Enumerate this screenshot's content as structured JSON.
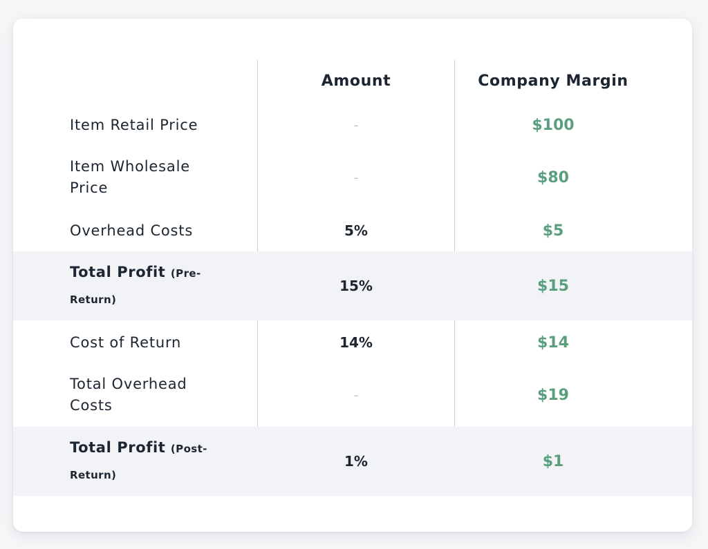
{
  "table": {
    "headers": {
      "label": "",
      "amount": "Amount",
      "margin": "Company Margin"
    },
    "rows": [
      {
        "label": "Item Retail Price",
        "suffix": "",
        "amount": "-",
        "margin": "$100",
        "emphasis": false
      },
      {
        "label": "Item Wholesale Price",
        "suffix": "",
        "amount": "-",
        "margin": "$80",
        "emphasis": false
      },
      {
        "label": "Overhead Costs",
        "suffix": "",
        "amount": "5%",
        "margin": "$5",
        "emphasis": false
      },
      {
        "label": "Total Profit",
        "suffix": "(Pre-Return)",
        "amount": "15%",
        "margin": "$15",
        "emphasis": true
      },
      {
        "label": "Cost of Return",
        "suffix": "",
        "amount": "14%",
        "margin": "$14",
        "emphasis": false
      },
      {
        "label": "Total Overhead Costs",
        "suffix": "",
        "amount": "-",
        "margin": "$19",
        "emphasis": false
      },
      {
        "label": "Total Profit",
        "suffix": "(Post-Return)",
        "amount": "1%",
        "margin": "$1",
        "emphasis": true
      }
    ]
  },
  "colors": {
    "margin_text": "#5a9e7e",
    "emphasis_row_bg": "#f1f3f6",
    "dash": "#b9bec4"
  }
}
